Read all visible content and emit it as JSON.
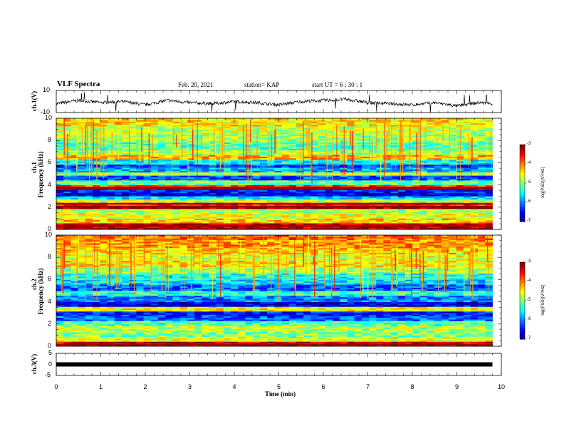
{
  "header": {
    "title": "VLF Spectra",
    "date": "Feb. 20, 2021",
    "station": "station= KAP",
    "start": "start  UT  =   6  : 30 : 1"
  },
  "chart_data": [
    {
      "type": "line",
      "panel": "ch1-waveform",
      "ylabel": "ch.1(V)",
      "ylim": [
        -10,
        10
      ],
      "y_ticks": [
        "10",
        "-10"
      ],
      "xlim": [
        0,
        10
      ],
      "description_series": "noisy waveform approximately between -6 and +4 V",
      "x": [
        0,
        0.5,
        1,
        1.5,
        2,
        2.5,
        3,
        3.5,
        4,
        4.5,
        5,
        5.5,
        6,
        6.5,
        7,
        7.5,
        8,
        8.5,
        9,
        9.5,
        9.8
      ],
      "y": [
        -2,
        1,
        -1,
        0,
        -3,
        1,
        -1,
        -2,
        0,
        -1,
        -3,
        0,
        1,
        2,
        -1,
        -2,
        -3,
        -1,
        -4,
        -1,
        -2
      ]
    },
    {
      "type": "heatmap",
      "panel": "ch1-spectrogram",
      "ylabel": "Frequency  (kHz)",
      "channel_label": "ch.1",
      "ylim": [
        0,
        10
      ],
      "y_ticks": [
        "0",
        "2",
        "4",
        "6",
        "8",
        "10"
      ],
      "xlim": [
        0,
        10
      ],
      "colorbar": {
        "label": "log(PSD)(V²/Hz)",
        "ticks": [
          "-3",
          "-4",
          "-5",
          "-6",
          "-7"
        ],
        "range": [
          -7,
          -3
        ]
      },
      "bands": [
        {
          "f": 0.3,
          "v": -3.2
        },
        {
          "f": 0.8,
          "v": -4.3
        },
        {
          "f": 1.2,
          "v": -4.6
        },
        {
          "f": 1.6,
          "v": -4.8
        },
        {
          "f": 2.05,
          "v": -3.1
        },
        {
          "f": 2.3,
          "v": -3.6
        },
        {
          "f": 2.5,
          "v": -4.7
        },
        {
          "f": 2.9,
          "v": -5.6
        },
        {
          "f": 3.2,
          "v": -6.6
        },
        {
          "f": 3.4,
          "v": -6.4
        },
        {
          "f": 3.7,
          "v": -3.0
        },
        {
          "f": 3.9,
          "v": -3.8
        },
        {
          "f": 4.2,
          "v": -5.1
        },
        {
          "f": 4.6,
          "v": -6.2
        },
        {
          "f": 5.0,
          "v": -4.8
        },
        {
          "f": 5.3,
          "v": -5.8
        },
        {
          "f": 5.7,
          "v": -6.3
        },
        {
          "f": 6.1,
          "v": -5.5
        },
        {
          "f": 6.5,
          "v": -4.2
        },
        {
          "f": 6.9,
          "v": -4.8
        },
        {
          "f": 7.5,
          "v": -5.2
        },
        {
          "f": 8.2,
          "v": -4.9
        },
        {
          "f": 9.0,
          "v": -4.7
        },
        {
          "f": 9.7,
          "v": -4.4
        }
      ]
    },
    {
      "type": "heatmap",
      "panel": "ch2-spectrogram",
      "ylabel": "Frequency  (kHz)",
      "channel_label": "ch.2",
      "ylim": [
        0,
        10
      ],
      "y_ticks": [
        "0",
        "2",
        "4",
        "6",
        "8",
        "10"
      ],
      "xlim": [
        0,
        10
      ],
      "colorbar": {
        "label": "log(PSD)(V²/Hz)",
        "ticks": [
          "-3",
          "-4",
          "-5",
          "-6",
          "-7"
        ],
        "range": [
          -7,
          -3
        ]
      },
      "bands": [
        {
          "f": 0.15,
          "v": -3.3
        },
        {
          "f": 0.6,
          "v": -4.6
        },
        {
          "f": 1.1,
          "v": -5.0
        },
        {
          "f": 1.6,
          "v": -4.8
        },
        {
          "f": 2.0,
          "v": -5.2
        },
        {
          "f": 2.5,
          "v": -6.1
        },
        {
          "f": 3.0,
          "v": -6.4
        },
        {
          "f": 3.3,
          "v": -4.5
        },
        {
          "f": 3.8,
          "v": -6.6
        },
        {
          "f": 4.3,
          "v": -6.0
        },
        {
          "f": 4.8,
          "v": -5.3
        },
        {
          "f": 5.3,
          "v": -6.1
        },
        {
          "f": 5.8,
          "v": -5.6
        },
        {
          "f": 6.3,
          "v": -5.4
        },
        {
          "f": 6.8,
          "v": -4.9
        },
        {
          "f": 7.4,
          "v": -4.4
        },
        {
          "f": 8.0,
          "v": -4.6
        },
        {
          "f": 8.6,
          "v": -4.3
        },
        {
          "f": 9.2,
          "v": -4.1
        },
        {
          "f": 9.8,
          "v": -3.9
        }
      ]
    },
    {
      "type": "line",
      "panel": "ch3-waveform",
      "ylabel": "ch.3(V)",
      "ylim": [
        -5,
        5
      ],
      "y_ticks": [
        "5",
        "0",
        "-5"
      ],
      "xlim": [
        0,
        10
      ],
      "x": [
        0,
        9.8
      ],
      "y": [
        0,
        0
      ]
    }
  ],
  "x_axis": {
    "label": "Time  (min)",
    "ticks": [
      "0",
      "1",
      "2",
      "3",
      "4",
      "5",
      "6",
      "7",
      "8",
      "9",
      "10"
    ]
  }
}
